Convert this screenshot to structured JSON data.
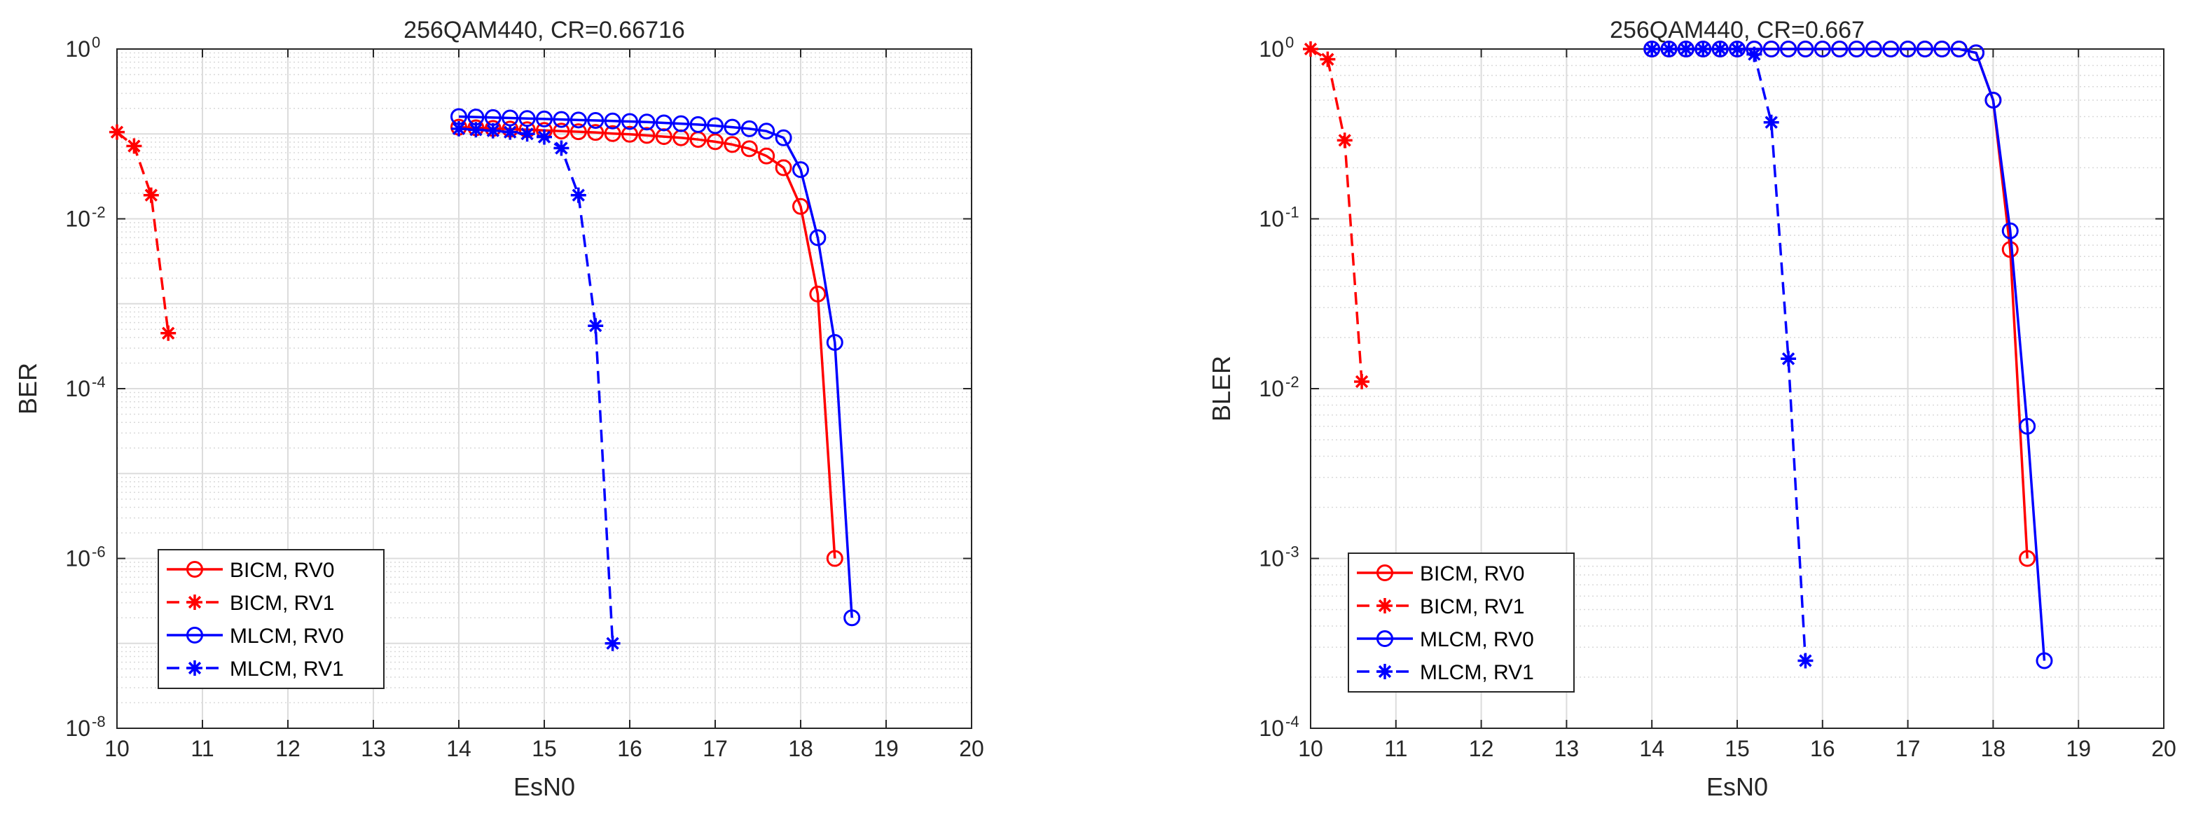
{
  "chart_data": [
    {
      "type": "line",
      "title": "256QAM440, CR=0.66716",
      "xlabel": "EsN0",
      "ylabel": "BER",
      "yscale": "log",
      "xlim": [
        10,
        20
      ],
      "ylim_exp": [
        -8,
        0
      ],
      "x_ticks": [
        "10",
        "11",
        "12",
        "13",
        "14",
        "15",
        "16",
        "17",
        "18",
        "19",
        "20"
      ],
      "y_ticks": [
        {
          "base": "10",
          "exp": "0"
        },
        {
          "base": "10",
          "exp": "-2"
        },
        {
          "base": "10",
          "exp": "-4"
        },
        {
          "base": "10",
          "exp": "-6"
        },
        {
          "base": "10",
          "exp": "-8"
        }
      ],
      "grid": true,
      "legend_position": "bottom-left",
      "series": [
        {
          "name": "BICM, RV0",
          "color": "#ff0000",
          "dash": "solid",
          "marker": "circle",
          "x": [
            14.0,
            14.2,
            14.4,
            14.6,
            14.8,
            15.0,
            15.2,
            15.4,
            15.6,
            15.8,
            16.0,
            16.2,
            16.4,
            16.6,
            16.8,
            17.0,
            17.2,
            17.4,
            17.6,
            17.8,
            18.0,
            18.2,
            18.4
          ],
          "y": [
            0.12,
            0.118,
            0.116,
            0.114,
            0.112,
            0.11,
            0.108,
            0.106,
            0.104,
            0.101,
            0.099,
            0.096,
            0.093,
            0.09,
            0.086,
            0.081,
            0.075,
            0.067,
            0.055,
            0.04,
            0.014,
            0.0013,
            1e-06
          ]
        },
        {
          "name": "BICM, RV1",
          "color": "#ff0000",
          "dash": "dashed",
          "marker": "star",
          "x": [
            10.0,
            10.2,
            10.4,
            10.6
          ],
          "y": [
            0.105,
            0.072,
            0.019,
            0.00045
          ]
        },
        {
          "name": "MLCM, RV0",
          "color": "#0000ff",
          "dash": "solid",
          "marker": "circle",
          "x": [
            14.0,
            14.2,
            14.4,
            14.6,
            14.8,
            15.0,
            15.2,
            15.4,
            15.6,
            15.8,
            16.0,
            16.2,
            16.4,
            16.6,
            16.8,
            17.0,
            17.2,
            17.4,
            17.6,
            17.8,
            18.0,
            18.2,
            18.4,
            18.6
          ],
          "y": [
            0.16,
            0.158,
            0.156,
            0.154,
            0.152,
            0.15,
            0.148,
            0.146,
            0.144,
            0.142,
            0.14,
            0.138,
            0.135,
            0.132,
            0.129,
            0.125,
            0.12,
            0.115,
            0.108,
            0.09,
            0.038,
            0.006,
            0.00035,
            2e-07
          ]
        },
        {
          "name": "MLCM, RV1",
          "color": "#0000ff",
          "dash": "dashed",
          "marker": "star",
          "x": [
            14.0,
            14.2,
            14.4,
            14.6,
            14.8,
            15.0,
            15.2,
            15.4,
            15.6,
            15.8
          ],
          "y": [
            0.115,
            0.112,
            0.109,
            0.105,
            0.1,
            0.092,
            0.068,
            0.019,
            0.00055,
            1e-07
          ]
        }
      ]
    },
    {
      "type": "line",
      "title": "256QAM440, CR=0.667",
      "xlabel": "EsN0",
      "ylabel": "BLER",
      "yscale": "log",
      "xlim": [
        10,
        20
      ],
      "ylim_exp": [
        -4,
        0
      ],
      "x_ticks": [
        "10",
        "11",
        "12",
        "13",
        "14",
        "15",
        "16",
        "17",
        "18",
        "19",
        "20"
      ],
      "y_ticks": [
        {
          "base": "10",
          "exp": "0"
        },
        {
          "base": "10",
          "exp": "-1"
        },
        {
          "base": "10",
          "exp": "-2"
        },
        {
          "base": "10",
          "exp": "-3"
        },
        {
          "base": "10",
          "exp": "-4"
        }
      ],
      "grid": true,
      "legend_position": "bottom-left",
      "series": [
        {
          "name": "BICM, RV0",
          "color": "#ff0000",
          "dash": "solid",
          "marker": "circle",
          "x": [
            14.0,
            14.2,
            14.4,
            14.6,
            14.8,
            15.0,
            15.2,
            15.4,
            15.6,
            15.8,
            16.0,
            16.2,
            16.4,
            16.6,
            16.8,
            17.0,
            17.2,
            17.4,
            17.6,
            17.8,
            18.0,
            18.2,
            18.4
          ],
          "y": [
            1,
            1,
            1,
            1,
            1,
            1,
            1,
            1,
            1,
            1,
            1,
            1,
            1,
            1,
            1,
            1,
            1,
            1,
            1,
            0.95,
            0.5,
            0.066,
            0.001
          ]
        },
        {
          "name": "BICM, RV1",
          "color": "#ff0000",
          "dash": "dashed",
          "marker": "star",
          "x": [
            10.0,
            10.2,
            10.4,
            10.6
          ],
          "y": [
            1.0,
            0.87,
            0.29,
            0.011
          ]
        },
        {
          "name": "MLCM, RV0",
          "color": "#0000ff",
          "dash": "solid",
          "marker": "circle",
          "x": [
            14.0,
            14.2,
            14.4,
            14.6,
            14.8,
            15.0,
            15.2,
            15.4,
            15.6,
            15.8,
            16.0,
            16.2,
            16.4,
            16.6,
            16.8,
            17.0,
            17.2,
            17.4,
            17.6,
            17.8,
            18.0,
            18.2,
            18.4,
            18.6
          ],
          "y": [
            1,
            1,
            1,
            1,
            1,
            1,
            1,
            1,
            1,
            1,
            1,
            1,
            1,
            1,
            1,
            1,
            1,
            1,
            1,
            0.95,
            0.5,
            0.085,
            0.006,
            0.00025
          ]
        },
        {
          "name": "MLCM, RV1",
          "color": "#0000ff",
          "dash": "dashed",
          "marker": "star",
          "x": [
            14.0,
            14.2,
            14.4,
            14.6,
            14.8,
            15.0,
            15.2,
            15.4,
            15.6,
            15.8
          ],
          "y": [
            1,
            1,
            1,
            1,
            1,
            1,
            0.93,
            0.37,
            0.015,
            0.00025
          ]
        }
      ]
    }
  ]
}
